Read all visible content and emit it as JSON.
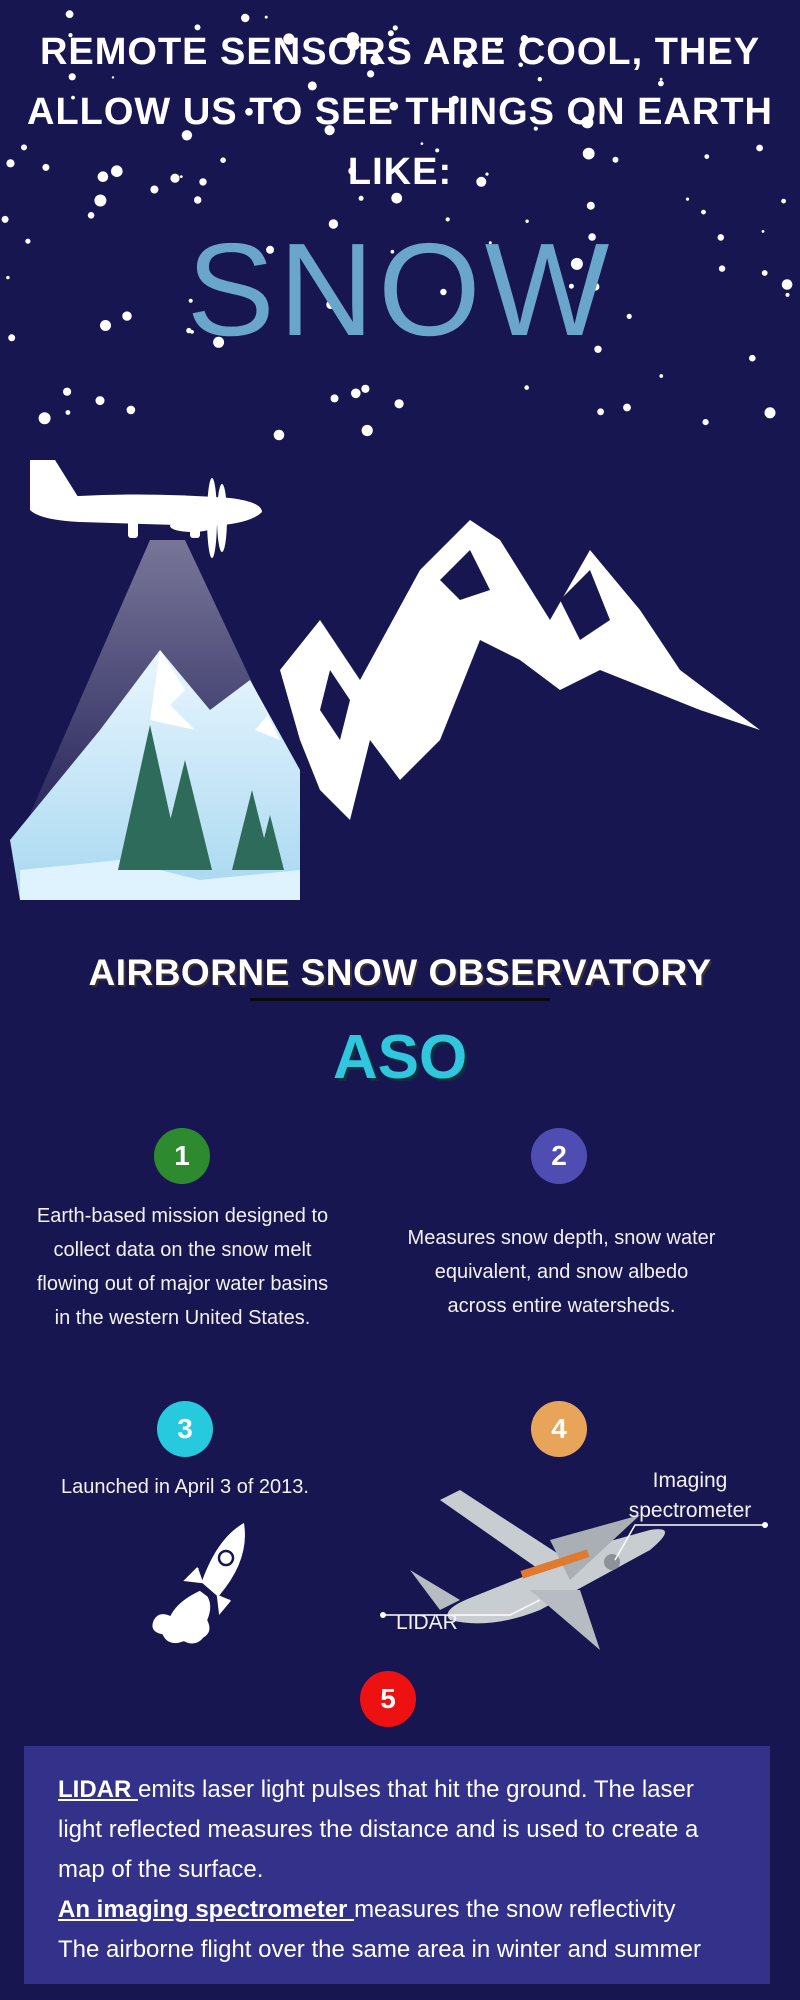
{
  "header": {
    "line1": "REMOTE SENSORS ARE COOL, THEY",
    "line2": "ALLOW US TO SEE THINGS ON EARTH LIKE:",
    "snow_word": "SNOW"
  },
  "section": {
    "title": "AIRBORNE SNOW OBSERVATORY",
    "abbreviation": "ASO"
  },
  "items": [
    {
      "number": "1",
      "color": "#2e8a2e",
      "text": "Earth-based mission designed to collect data on the snow melt flowing out of major water basins in the western United States."
    },
    {
      "number": "2",
      "color": "#4f4db2",
      "text": "Measures snow depth, snow water equivalent, and snow albedo across entire watersheds."
    },
    {
      "number": "3",
      "color": "#26c9dd",
      "text": "Launched in April 3 of 2013."
    },
    {
      "number": "4",
      "color": "#e8a55a",
      "labels": {
        "imaging": "Imaging spectrometer",
        "lidar": "LIDAR"
      }
    },
    {
      "number": "5",
      "color": "#ee1111"
    }
  ],
  "info": {
    "lidar_term": "LIDAR ",
    "lidar_text": "emits laser light pulses that hit the ground. The laser light reflected measures the distance and is used to create a map of the surface.",
    "spectrometer_term": "An imaging spectrometer ",
    "spectrometer_text": "measures the snow reflectivity",
    "flight_text": "The airborne flight over the same area in winter and summer"
  },
  "icons": [
    "snowflake-dots",
    "airplane-icon",
    "mountain-illustration",
    "pine-tree-icon",
    "rocket-icon",
    "aso-plane-icon"
  ],
  "colors": {
    "background": "#181650",
    "snow_word": "#6aa6cc",
    "aso_abbr": "#2fc6de",
    "info_box": "#34318a"
  }
}
